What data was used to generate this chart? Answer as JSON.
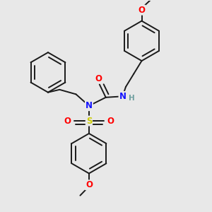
{
  "bg_color": "#e8e8e8",
  "bond_color": "#1a1a1a",
  "N_color": "#1414ff",
  "O_color": "#ff0000",
  "S_color": "#cccc00",
  "H_color": "#70a0a0",
  "lw": 1.4,
  "fs": 8.5,
  "fig_w": 3.0,
  "fig_h": 3.0,
  "dpi": 100,
  "xlim": [
    0,
    10
  ],
  "ylim": [
    0,
    10
  ]
}
